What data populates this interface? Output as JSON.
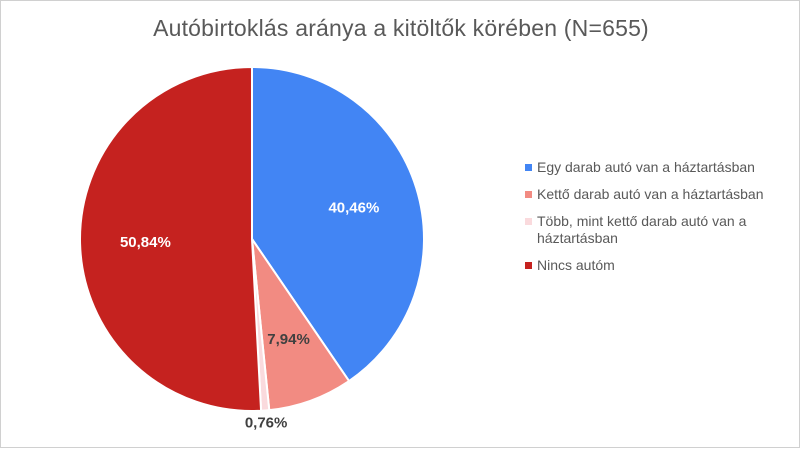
{
  "chart_data": {
    "type": "pie",
    "title": "Autóbirtoklás aránya a kitöltők körében (N=655)",
    "slices": [
      {
        "name": "Egy darab autó van a háztartásban",
        "value": 40.46,
        "label": "40,46%",
        "color": "#4285f4"
      },
      {
        "name": "Kettő darab autó van a háztartásban",
        "value": 7.94,
        "label": "7,94%",
        "color": "#f28b82"
      },
      {
        "name": "Több, mint kettő darab autó van a háztartásban",
        "value": 0.76,
        "label": "0,76%",
        "color": "#fadadd"
      },
      {
        "name": "Nincs autóm",
        "value": 50.84,
        "label": "50,84%",
        "color": "#c5221f"
      }
    ],
    "legend_position": "right",
    "label_colors": {
      "on_slice": "#ffffff",
      "light_slice": "#404040"
    }
  }
}
